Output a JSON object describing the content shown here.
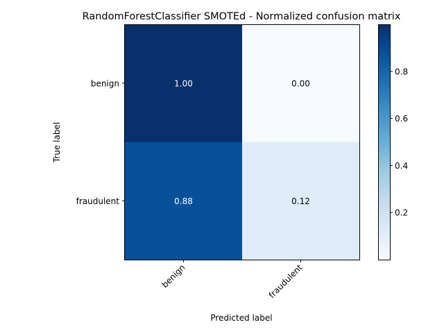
{
  "chart_data": {
    "type": "heatmap",
    "title": "RandomForestClassifier SMOTEd - Normalized confusion matrix",
    "xlabel": "Predicted label",
    "ylabel": "True label",
    "x_categories": [
      "benign",
      "fraudulent"
    ],
    "y_categories": [
      "benign",
      "fraudulent"
    ],
    "values": [
      [
        1.0,
        0.0
      ],
      [
        0.88,
        0.12
      ]
    ],
    "cell_labels": [
      [
        "1.00",
        "0.00"
      ],
      [
        "0.88",
        "0.12"
      ]
    ],
    "colormap": "Blues",
    "colorbar": {
      "range": [
        0.0,
        1.0
      ],
      "ticks": [
        0.2,
        0.4,
        0.6,
        0.8
      ],
      "tick_labels": [
        "0.2",
        "0.4",
        "0.6",
        "0.8"
      ]
    },
    "colors": {
      "low": "#f7fbff",
      "high": "#08306b",
      "text_dark": "#000000",
      "text_light": "#ffffff"
    },
    "grid": false,
    "legend": "colorbar-right"
  }
}
